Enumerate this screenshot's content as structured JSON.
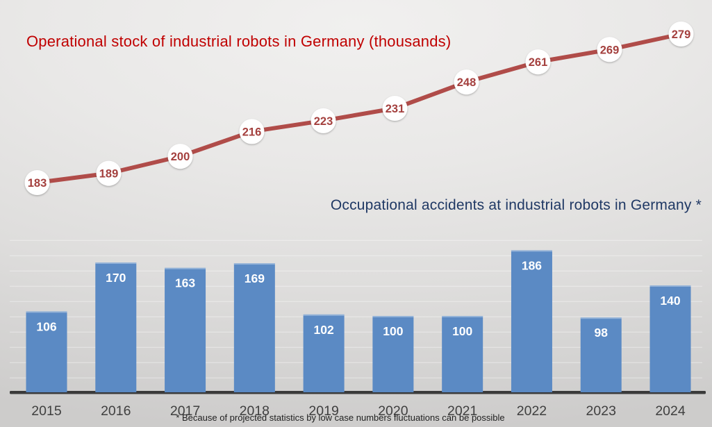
{
  "titles": {
    "line_title": "Operational stock of industrial robots in Germany (thousands)",
    "bar_title": "Occupational accidents at industrial robots in Germany *"
  },
  "footnote": "* Because of projected statistics by low case numbers fluctuations can be possible",
  "colors": {
    "line_series": "#B04C49",
    "line_point_label": "#A4403E",
    "line_title": "#C00000",
    "marker_fill": "#FFFFFF",
    "bar_fill": "#5B8AC4",
    "bar_value_label": "#FFFFFF",
    "bar_title": "#1F3864",
    "axis_line": "#3A3A3A",
    "gridline_mid": "#CBCAC8",
    "gridline_end": "#8F8E8D",
    "tick_label": "#3F3F3F"
  },
  "chart_data": [
    {
      "type": "line",
      "title": "Operational stock of industrial robots in Germany (thousands)",
      "categories": [
        "2015",
        "2016",
        "2017",
        "2018",
        "2019",
        "2020",
        "2021",
        "2022",
        "2023",
        "2024"
      ],
      "values": [
        183,
        189,
        200,
        216,
        223,
        231,
        248,
        261,
        269,
        279
      ],
      "unit": "thousands",
      "data_labels": true,
      "marker": "white-circle",
      "grid": false,
      "axes_visible": false
    },
    {
      "type": "bar",
      "title": "Occupational accidents at industrial robots in Germany *",
      "categories": [
        "2015",
        "2016",
        "2017",
        "2018",
        "2019",
        "2020",
        "2021",
        "2022",
        "2023",
        "2024"
      ],
      "values": [
        106,
        170,
        163,
        169,
        102,
        100,
        100,
        186,
        98,
        140
      ],
      "ylim": [
        0,
        200
      ],
      "gridline_step": 20,
      "grid": true,
      "data_labels": true,
      "legend": "none",
      "footnote": "* Because of projected statistics by low case numbers fluctuations can be possible"
    }
  ]
}
